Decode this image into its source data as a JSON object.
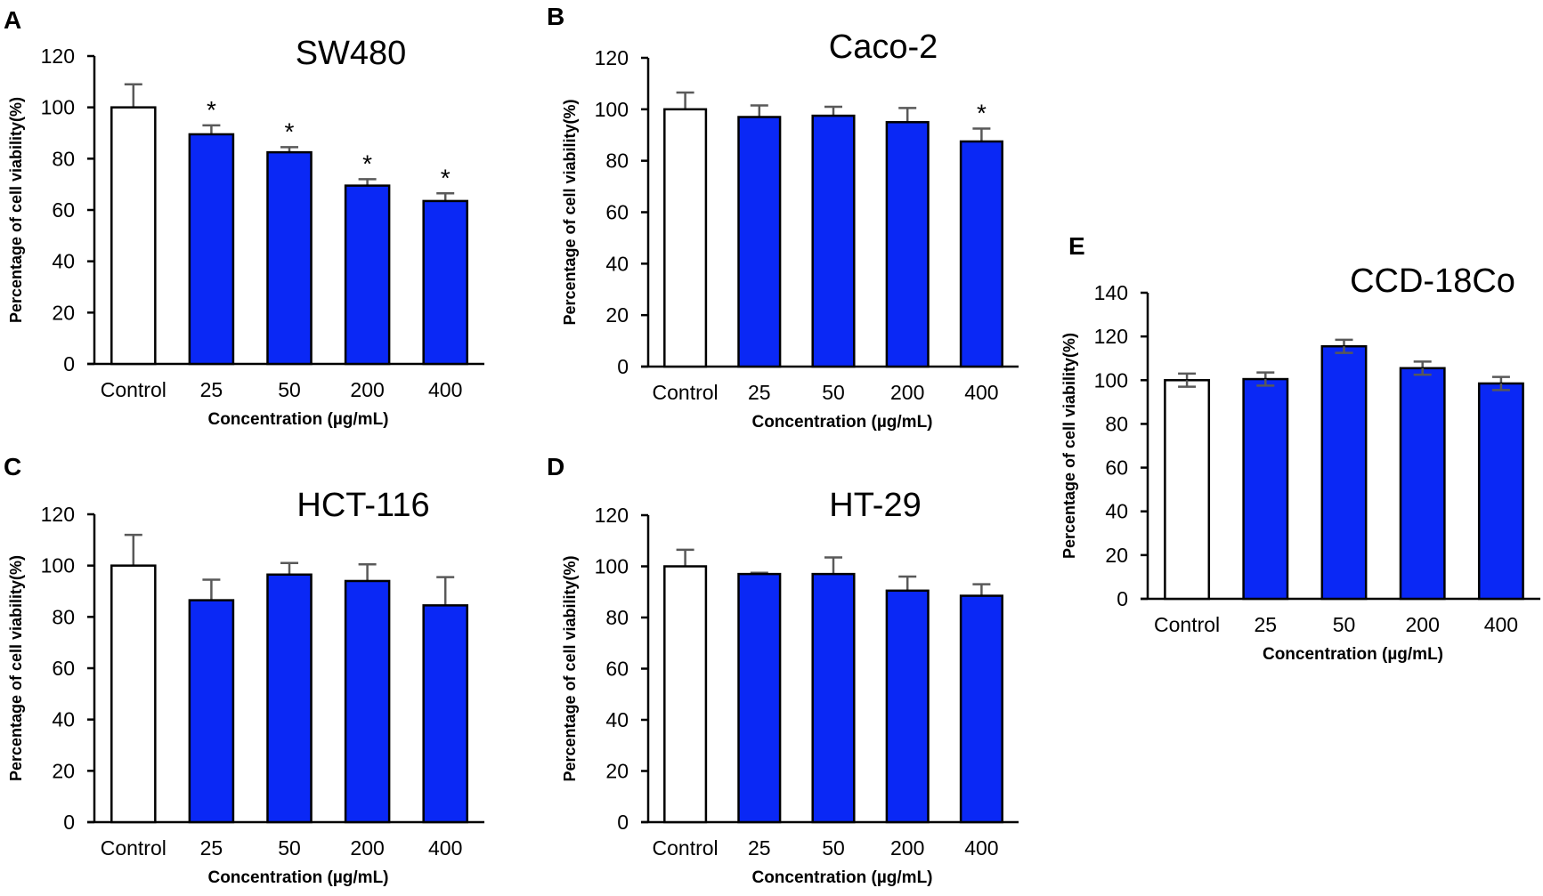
{
  "chart_data": [
    {
      "type": "bar",
      "panel": "A",
      "title": "SW480",
      "xlabel": "Concentration (µg/mL)",
      "ylabel": "Percentage of cell viability(%)",
      "ylim": [
        0,
        120
      ],
      "yticks": [
        0,
        20,
        40,
        60,
        80,
        100,
        120
      ],
      "categories": [
        "Control",
        "25",
        "50",
        "200",
        "400"
      ],
      "values": [
        100,
        89.5,
        82.5,
        69.5,
        63.5
      ],
      "errors": [
        9,
        3.5,
        2,
        2.5,
        3
      ],
      "significant": [
        false,
        true,
        true,
        true,
        true
      ],
      "error_style": "upper"
    },
    {
      "type": "bar",
      "panel": "B",
      "title": "Caco-2",
      "xlabel": "Concentration (µg/mL)",
      "ylabel": "Percentage of cell viability(%)",
      "ylim": [
        0,
        120
      ],
      "yticks": [
        0,
        20,
        40,
        60,
        80,
        100,
        120
      ],
      "categories": [
        "Control",
        "25",
        "50",
        "200",
        "400"
      ],
      "values": [
        100,
        97,
        97.5,
        95,
        87.5
      ],
      "errors": [
        6.5,
        4.5,
        3.5,
        5.5,
        5
      ],
      "significant": [
        false,
        false,
        false,
        false,
        true
      ],
      "error_style": "upper"
    },
    {
      "type": "bar",
      "panel": "C",
      "title": "HCT-116",
      "xlabel": "Concentration (µg/mL)",
      "ylabel": "Percentage of cell viability(%)",
      "ylim": [
        0,
        120
      ],
      "yticks": [
        0,
        20,
        40,
        60,
        80,
        100,
        120
      ],
      "categories": [
        "Control",
        "25",
        "50",
        "200",
        "400"
      ],
      "values": [
        100,
        86.5,
        96.5,
        94,
        84.5
      ],
      "errors": [
        12,
        8,
        4.5,
        6.5,
        11
      ],
      "significant": [
        false,
        false,
        false,
        false,
        false
      ],
      "error_style": "upper"
    },
    {
      "type": "bar",
      "panel": "D",
      "title": "HT-29",
      "xlabel": "Concentration (µg/mL)",
      "ylabel": "Percentage of cell viability(%)",
      "ylim": [
        0,
        120
      ],
      "yticks": [
        0,
        20,
        40,
        60,
        80,
        100,
        120
      ],
      "categories": [
        "Control",
        "25",
        "50",
        "200",
        "400"
      ],
      "values": [
        100,
        97,
        97,
        90.5,
        88.5
      ],
      "errors": [
        6.5,
        0.5,
        6.5,
        5.5,
        4.5
      ],
      "significant": [
        false,
        false,
        false,
        false,
        false
      ],
      "error_style": "upper"
    },
    {
      "type": "bar",
      "panel": "E",
      "title": "CCD-18Co",
      "xlabel": "Concentration (µg/mL)",
      "ylabel": "Percentage of cell viability(%)",
      "ylim": [
        0,
        140
      ],
      "yticks": [
        0,
        20,
        40,
        60,
        80,
        100,
        120,
        140
      ],
      "categories": [
        "Control",
        "25",
        "50",
        "200",
        "400"
      ],
      "values": [
        100,
        100.5,
        115.5,
        105.5,
        98.5
      ],
      "errors": [
        3,
        3,
        3,
        3,
        3
      ],
      "significant": [
        false,
        false,
        false,
        false,
        false
      ],
      "error_style": "both"
    }
  ],
  "significance_marker": "*",
  "colors": {
    "control": "#ffffff",
    "treated": "#0a28f5",
    "outline": "#000000",
    "error": "#595959"
  }
}
